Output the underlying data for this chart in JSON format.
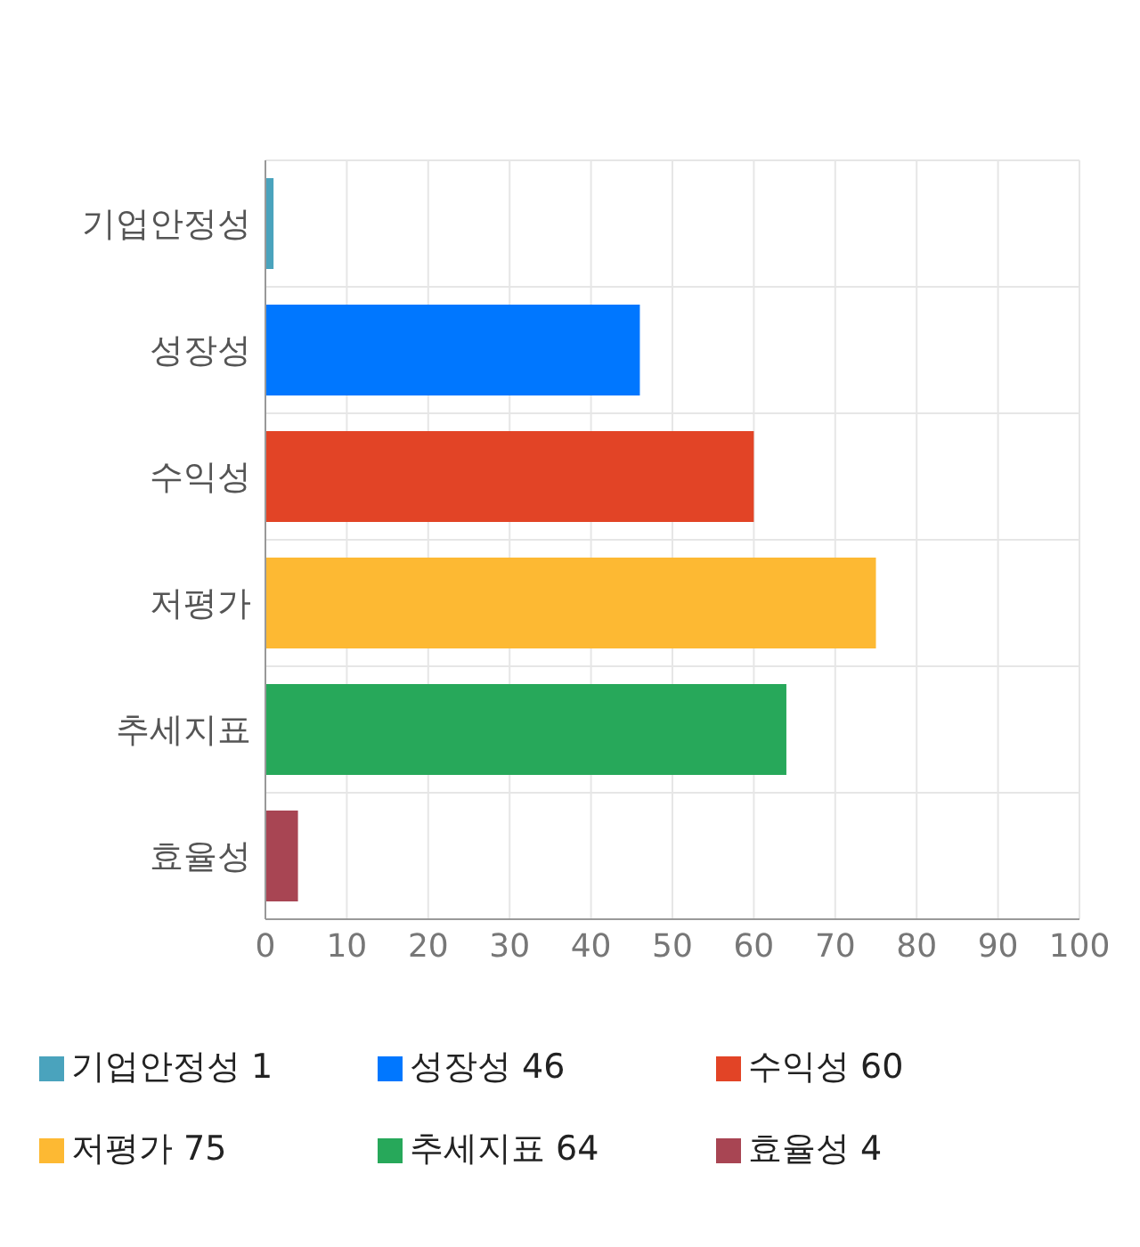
{
  "chart_data": {
    "type": "bar",
    "orientation": "horizontal",
    "stacked": true,
    "categories": [
      "기업안정성",
      "성장성",
      "수익성",
      "저평가",
      "추세지표",
      "효율성"
    ],
    "series": [
      {
        "name": "기업안정성 1",
        "color": "#4aa3bd",
        "values": [
          1,
          null,
          null,
          null,
          null,
          null
        ]
      },
      {
        "name": "성장성 46",
        "color": "#0077ff",
        "values": [
          null,
          46,
          null,
          null,
          null,
          null
        ]
      },
      {
        "name": "수익성 60",
        "color": "#e24426",
        "values": [
          null,
          null,
          60,
          null,
          null,
          null
        ]
      },
      {
        "name": "저평가 75",
        "color": "#fdb933",
        "values": [
          null,
          null,
          null,
          75,
          null,
          null
        ]
      },
      {
        "name": "추세지표 64",
        "color": "#27a85a",
        "values": [
          null,
          null,
          null,
          null,
          64,
          null
        ]
      },
      {
        "name": "효율성 4",
        "color": "#a84553",
        "values": [
          null,
          null,
          null,
          null,
          null,
          4
        ]
      }
    ],
    "xlim": [
      0,
      100
    ],
    "xticks": [
      0,
      10,
      20,
      30,
      40,
      50,
      60,
      70,
      80,
      90,
      100
    ],
    "grid": true,
    "legend": "bottom"
  }
}
